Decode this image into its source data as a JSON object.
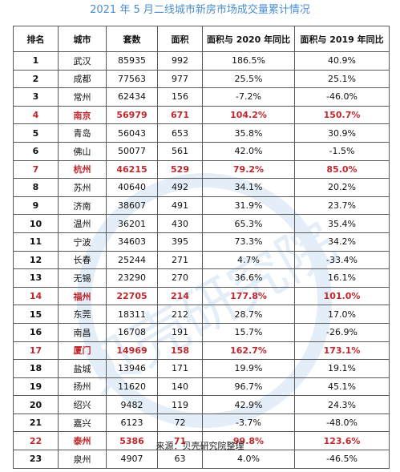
{
  "title": "2021 年 5 月二线城市新房市场成交量累计情况",
  "headers": [
    "排名",
    "城市",
    "套数",
    "面积",
    "面积与 2020 年同比",
    "面积与 2019 年同比"
  ],
  "rows": [
    {
      "rank": "1",
      "city": "武汉",
      "units": "85935",
      "area": "992",
      "yoy2020": "186.5%",
      "yoy2019": "40.9%",
      "highlight": false
    },
    {
      "rank": "2",
      "city": "成都",
      "units": "77563",
      "area": "977",
      "yoy2020": "25.5%",
      "yoy2019": "25.1%",
      "highlight": false
    },
    {
      "rank": "3",
      "city": "常州",
      "units": "62434",
      "area": "156",
      "yoy2020": "-7.2%",
      "yoy2019": "-46.0%",
      "highlight": false
    },
    {
      "rank": "4",
      "city": "南京",
      "units": "56979",
      "area": "671",
      "yoy2020": "104.2%",
      "yoy2019": "150.7%",
      "highlight": true
    },
    {
      "rank": "5",
      "city": "青岛",
      "units": "56043",
      "area": "653",
      "yoy2020": "35.8%",
      "yoy2019": "30.9%",
      "highlight": false
    },
    {
      "rank": "6",
      "city": "佛山",
      "units": "50077",
      "area": "561",
      "yoy2020": "42.0%",
      "yoy2019": "-1.5%",
      "highlight": false
    },
    {
      "rank": "7",
      "city": "杭州",
      "units": "46215",
      "area": "529",
      "yoy2020": "79.2%",
      "yoy2019": "85.0%",
      "highlight": true
    },
    {
      "rank": "8",
      "city": "苏州",
      "units": "40640",
      "area": "492",
      "yoy2020": "34.1%",
      "yoy2019": "20.2%",
      "highlight": false
    },
    {
      "rank": "9",
      "city": "济南",
      "units": "38607",
      "area": "491",
      "yoy2020": "31.9%",
      "yoy2019": "23.7%",
      "highlight": false
    },
    {
      "rank": "10",
      "city": "温州",
      "units": "36201",
      "area": "430",
      "yoy2020": "65.3%",
      "yoy2019": "35.4%",
      "highlight": false
    },
    {
      "rank": "11",
      "city": "宁波",
      "units": "34603",
      "area": "395",
      "yoy2020": "73.3%",
      "yoy2019": "34.2%",
      "highlight": false
    },
    {
      "rank": "12",
      "city": "长春",
      "units": "25244",
      "area": "271",
      "yoy2020": "4.7%",
      "yoy2019": "-33.4%",
      "highlight": false
    },
    {
      "rank": "13",
      "city": "无锡",
      "units": "23290",
      "area": "270",
      "yoy2020": "36.6%",
      "yoy2019": "16.1%",
      "highlight": false
    },
    {
      "rank": "14",
      "city": "福州",
      "units": "22705",
      "area": "214",
      "yoy2020": "177.8%",
      "yoy2019": "101.0%",
      "highlight": true
    },
    {
      "rank": "15",
      "city": "东莞",
      "units": "18311",
      "area": "212",
      "yoy2020": "28.7%",
      "yoy2019": "17.0%",
      "highlight": false
    },
    {
      "rank": "16",
      "city": "南昌",
      "units": "16708",
      "area": "191",
      "yoy2020": "15.7%",
      "yoy2019": "-26.9%",
      "highlight": false
    },
    {
      "rank": "17",
      "city": "厦门",
      "units": "14969",
      "area": "158",
      "yoy2020": "162.7%",
      "yoy2019": "173.1%",
      "highlight": true
    },
    {
      "rank": "18",
      "city": "盐城",
      "units": "13946",
      "area": "171",
      "yoy2020": "19.9%",
      "yoy2019": "19.1%",
      "highlight": false
    },
    {
      "rank": "19",
      "city": "扬州",
      "units": "11620",
      "area": "140",
      "yoy2020": "96.7%",
      "yoy2019": "45.1%",
      "highlight": false
    },
    {
      "rank": "20",
      "city": "绍兴",
      "units": "9482",
      "area": "119",
      "yoy2020": "42.9%",
      "yoy2019": "24.3%",
      "highlight": false
    },
    {
      "rank": "21",
      "city": "嘉兴",
      "units": "6123",
      "area": "72",
      "yoy2020": "-3.7%",
      "yoy2019": "-48.0%",
      "highlight": false
    },
    {
      "rank": "22",
      "city": "泰州",
      "units": "5386",
      "area": "71",
      "yoy2020": "99.8%",
      "yoy2019": "123.6%",
      "highlight": true
    },
    {
      "rank": "23",
      "city": "泉州",
      "units": "4907",
      "area": "63",
      "yoy2020": "4.0%",
      "yoy2019": "-46.5%",
      "highlight": false
    }
  ],
  "source": "来源：贝壳研究院整理",
  "watermark": "贝壳研究院",
  "colors": {
    "title": "#4a8fd1",
    "highlight": "#c0282d",
    "watermark": "#cfe3f5"
  }
}
